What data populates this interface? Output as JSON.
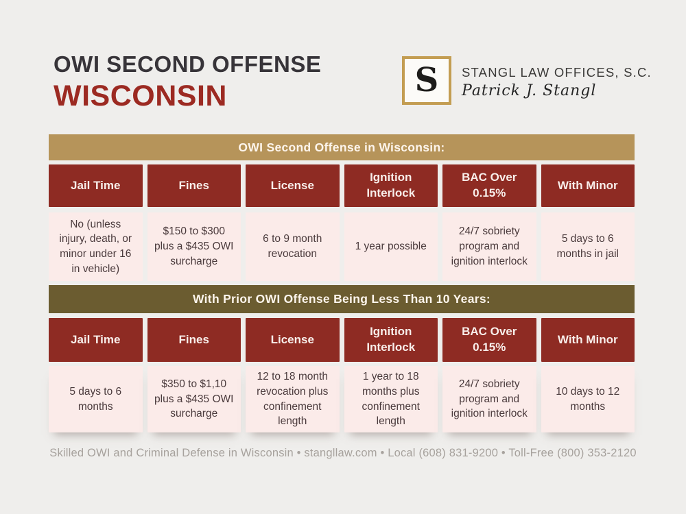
{
  "header": {
    "title_line1": "OWI SECOND OFFENSE",
    "title_line2": "WISCONSIN"
  },
  "brand": {
    "monogram": "S",
    "firm_name": "STANGL LAW OFFICES, S.C.",
    "attorney_name": "Patrick J. Stangl"
  },
  "colors": {
    "page_background": "#efeeec",
    "maroon": "#8e2b23",
    "gold_banner": "#b6945a",
    "olive_banner": "#6b5c30",
    "cell_pink": "#fbebe9",
    "title_red": "#9c2a22",
    "title_dark": "#373439",
    "logo_border_gold": "#c39d52"
  },
  "table": {
    "section1": {
      "banner": "OWI Second Offense in Wisconsin:",
      "columns": [
        "Jail Time",
        "Fines",
        "License",
        "Ignition Interlock",
        "BAC Over 0.15%",
        "With Minor"
      ],
      "values": [
        "No (unless injury, death, or minor under 16 in vehicle)",
        "$150 to $300 plus a $435 OWI surcharge",
        "6 to 9 month revocation",
        "1 year possible",
        "24/7 sobriety program and ignition interlock",
        "5 days to 6 months in jail"
      ]
    },
    "section2": {
      "banner": "With Prior OWI Offense Being Less Than 10 Years:",
      "columns": [
        "Jail Time",
        "Fines",
        "License",
        "Ignition Interlock",
        "BAC Over 0.15%",
        "With Minor"
      ],
      "values": [
        "5 days to 6 months",
        "$350 to $1,10 plus a $435 OWI surcharge",
        "12 to 18 month revocation plus confinement length",
        "1 year to 18 months plus confinement length",
        "24/7 sobriety program and ignition interlock",
        "10 days to 12 months"
      ]
    }
  },
  "footer": {
    "text": "Skilled OWI and Criminal Defense in Wisconsin • stangllaw.com • Local (608) 831-9200 • Toll-Free (800) 353-2120"
  }
}
